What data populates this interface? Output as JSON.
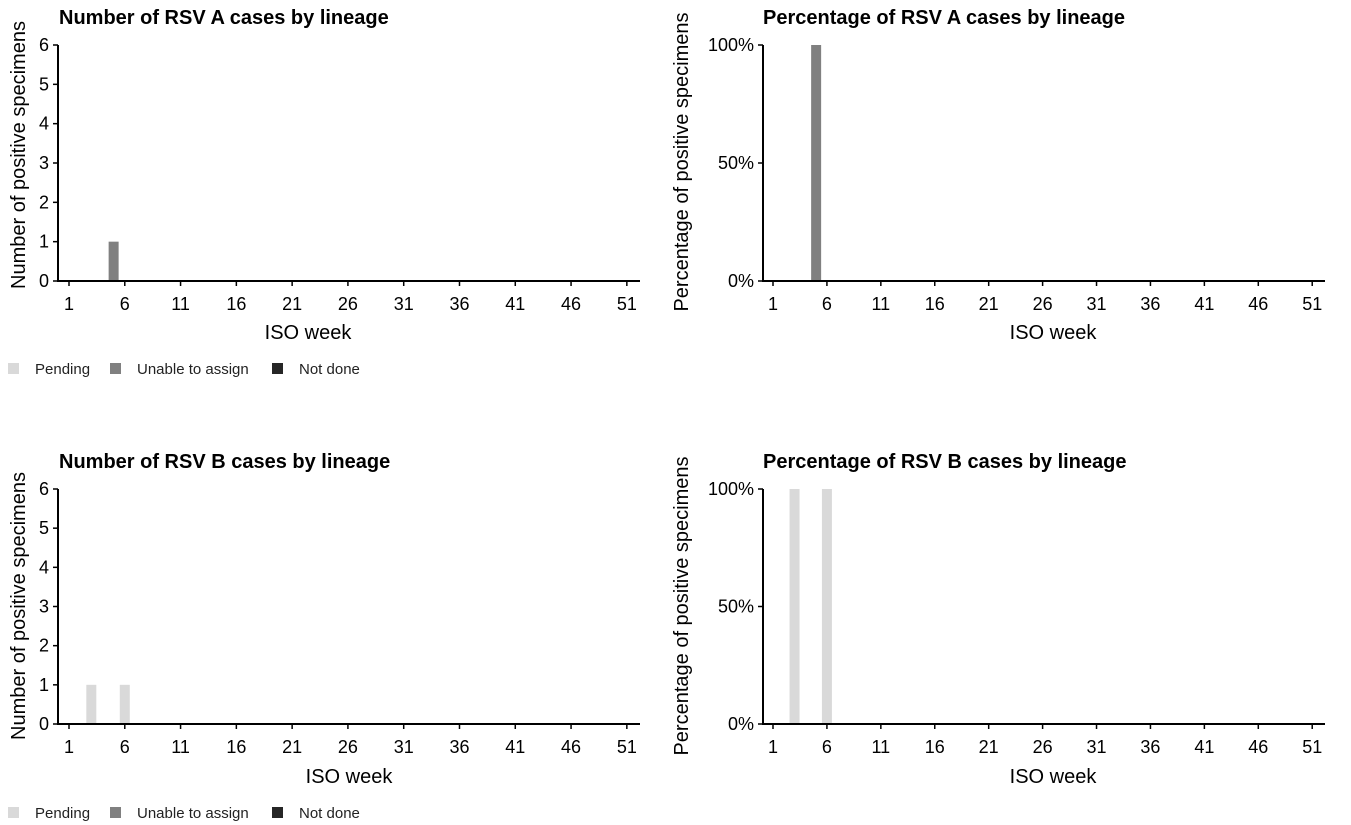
{
  "chart_data": [
    {
      "type": "bar",
      "title": "Number of RSV A cases by lineage",
      "xlabel": "ISO week",
      "ylabel": "Number of positive specimens",
      "x_range": [
        1,
        52
      ],
      "xticks": [
        "1",
        "6",
        "11",
        "16",
        "21",
        "26",
        "31",
        "36",
        "41",
        "46",
        "51"
      ],
      "ylim": [
        0,
        6
      ],
      "yticks": [
        "0",
        "1",
        "2",
        "3",
        "4",
        "5",
        "6"
      ],
      "grid": false,
      "legend": [
        "Pending",
        "Unable to assign",
        "Not done"
      ],
      "legend_placement": "bottom-left",
      "series": [
        {
          "name": "Pending",
          "color": "#d9d9d9",
          "points": []
        },
        {
          "name": "Unable to assign",
          "color": "#808080",
          "points": [
            {
              "week": 5,
              "value": 1
            }
          ]
        },
        {
          "name": "Not done",
          "color": "#262626",
          "points": []
        }
      ]
    },
    {
      "type": "bar",
      "title": "Percentage of RSV A cases by lineage",
      "xlabel": "ISO week",
      "ylabel": "Percentage of positive specimens",
      "x_range": [
        1,
        52
      ],
      "xticks": [
        "1",
        "6",
        "11",
        "16",
        "21",
        "26",
        "31",
        "36",
        "41",
        "46",
        "51"
      ],
      "ylim": [
        0,
        100
      ],
      "yticks": [
        "0%",
        "50%",
        "100%"
      ],
      "grid": false,
      "series": [
        {
          "name": "Pending",
          "color": "#d9d9d9",
          "points": []
        },
        {
          "name": "Unable to assign",
          "color": "#808080",
          "points": [
            {
              "week": 5,
              "value": 100
            }
          ]
        },
        {
          "name": "Not done",
          "color": "#262626",
          "points": []
        }
      ]
    },
    {
      "type": "bar",
      "title": "Number of RSV B cases by lineage",
      "xlabel": "ISO week",
      "ylabel": "Number of positive specimens",
      "x_range": [
        1,
        52
      ],
      "xticks": [
        "1",
        "6",
        "11",
        "16",
        "21",
        "26",
        "31",
        "36",
        "41",
        "46",
        "51"
      ],
      "ylim": [
        0,
        6
      ],
      "yticks": [
        "0",
        "1",
        "2",
        "3",
        "4",
        "5",
        "6"
      ],
      "grid": false,
      "legend": [
        "Pending",
        "Unable to assign",
        "Not done"
      ],
      "legend_placement": "bottom-left",
      "series": [
        {
          "name": "Pending",
          "color": "#d9d9d9",
          "points": [
            {
              "week": 3,
              "value": 1
            },
            {
              "week": 6,
              "value": 1
            }
          ]
        },
        {
          "name": "Unable to assign",
          "color": "#808080",
          "points": []
        },
        {
          "name": "Not done",
          "color": "#262626",
          "points": []
        }
      ]
    },
    {
      "type": "bar",
      "title": "Percentage of RSV B cases by lineage",
      "xlabel": "ISO week",
      "ylabel": "Percentage of positive specimens",
      "x_range": [
        1,
        52
      ],
      "xticks": [
        "1",
        "6",
        "11",
        "16",
        "21",
        "26",
        "31",
        "36",
        "41",
        "46",
        "51"
      ],
      "ylim": [
        0,
        100
      ],
      "yticks": [
        "0%",
        "50%",
        "100%"
      ],
      "grid": false,
      "series": [
        {
          "name": "Pending",
          "color": "#d9d9d9",
          "points": [
            {
              "week": 3,
              "value": 100
            },
            {
              "week": 6,
              "value": 100
            }
          ]
        },
        {
          "name": "Unable to assign",
          "color": "#808080",
          "points": []
        },
        {
          "name": "Not done",
          "color": "#262626",
          "points": []
        }
      ]
    }
  ]
}
